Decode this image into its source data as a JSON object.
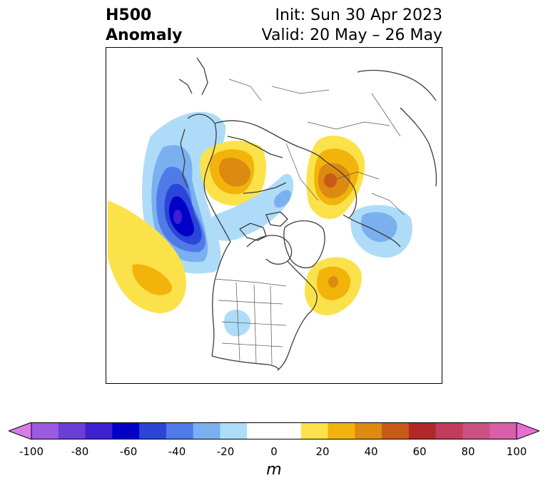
{
  "header": {
    "title_line1": "H500",
    "title_line2": "Anomaly",
    "init": "Init: Sun 30 Apr 2023",
    "valid": "Valid: 20 May – 26 May"
  },
  "colorbar": {
    "unit": "m",
    "min": -100,
    "max": 100,
    "step": 10,
    "extend": "both",
    "ticks": [
      "-100",
      "-80",
      "-60",
      "-40",
      "-20",
      "0",
      "20",
      "40",
      "60",
      "80",
      "100"
    ],
    "colors": [
      "#d87ae8",
      "#9c5ae0",
      "#6a3fd8",
      "#3f1fd2",
      "#0000c8",
      "#2a45d8",
      "#4f7ae8",
      "#7ab0f0",
      "#aedcf8",
      "#ffffff",
      "#ffffff",
      "#fce24a",
      "#f2b40a",
      "#dc8a10",
      "#c85a18",
      "#b02828",
      "#c03c5a",
      "#cc5080",
      "#d860a8",
      "#e86ed2"
    ]
  },
  "map": {
    "projection": "polar stereographic (Northern Hemisphere)",
    "anomalies": [
      {
        "region": "NE Pacific / Gulf of Alaska",
        "sign": "negative",
        "peak_m": -70
      },
      {
        "region": "Central North Pacific",
        "sign": "positive",
        "peak_m": 30
      },
      {
        "region": "East Siberia",
        "sign": "positive",
        "peak_m": 40
      },
      {
        "region": "Western Russia / Scandinavia",
        "sign": "positive",
        "peak_m": 40
      },
      {
        "region": "Atlantic off Newfoundland",
        "sign": "positive",
        "peak_m": 30
      },
      {
        "region": "Western Europe / Bay of Biscay",
        "sign": "negative",
        "peak_m": -30
      },
      {
        "region": "Central United States",
        "sign": "negative",
        "peak_m": -10
      },
      {
        "region": "Arctic / Northern Siberia",
        "sign": "negative",
        "peak_m": -20
      }
    ]
  }
}
